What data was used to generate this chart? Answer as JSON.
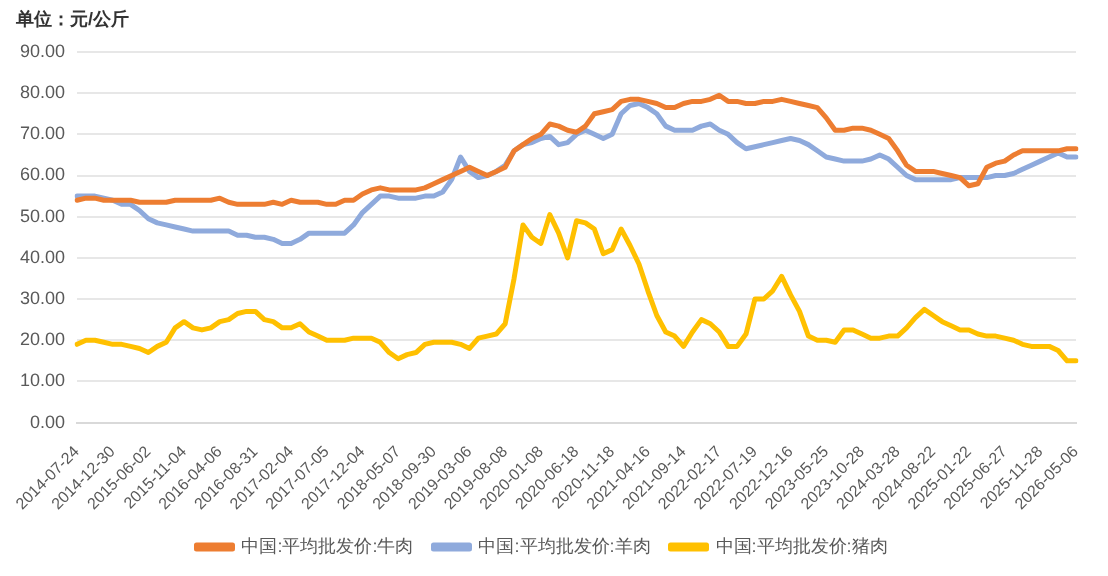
{
  "chart_data": {
    "type": "line",
    "ylabel": "单位：元/公斤",
    "categories": [
      "2014-07-24",
      null,
      null,
      null,
      "2014-12-30",
      null,
      null,
      null,
      "2015-06-02",
      null,
      null,
      null,
      "2015-11-04",
      null,
      null,
      null,
      "2016-04-06",
      null,
      null,
      null,
      "2016-08-31",
      null,
      null,
      null,
      "2017-02-04",
      null,
      null,
      null,
      "2017-07-05",
      null,
      null,
      null,
      "2017-12-04",
      null,
      null,
      null,
      "2018-05-07",
      null,
      null,
      null,
      "2018-09-30",
      null,
      null,
      null,
      "2019-03-06",
      null,
      null,
      null,
      "2019-08-08",
      null,
      null,
      null,
      "2020-01-08",
      null,
      null,
      null,
      "2020-06-18",
      null,
      null,
      null,
      "2020-11-18",
      null,
      null,
      null,
      "2021-04-16",
      null,
      null,
      null,
      "2021-09-14",
      null,
      null,
      null,
      "2022-02-17",
      null,
      null,
      null,
      "2022-07-19",
      null,
      null,
      null,
      "2022-12-16",
      null,
      null,
      null,
      "2023-05-25",
      null,
      null,
      null,
      "2023-10-28",
      null,
      null,
      null,
      "2024-03-28",
      null,
      null,
      null,
      "2024-08-22",
      null,
      null,
      null,
      "2025-01-22",
      null,
      null,
      null,
      "2025-06-27",
      null,
      null,
      null,
      "2025-11-28",
      null,
      null,
      null,
      "2026-05-06"
    ],
    "series": [
      {
        "name": "中国:平均批发价:牛肉",
        "color": "#ed7d31",
        "values": [
          54,
          54.5,
          54.5,
          54,
          54,
          54,
          54,
          53.5,
          53.5,
          53.5,
          53.5,
          54,
          54,
          54,
          54,
          54,
          54.5,
          53.5,
          53,
          53,
          53,
          53,
          53.5,
          53,
          54,
          53.5,
          53.5,
          53.5,
          53,
          53,
          54,
          54,
          55.5,
          56.5,
          57,
          56.5,
          56.5,
          56.5,
          56.5,
          57,
          58,
          59,
          60,
          61,
          62,
          61,
          60,
          61,
          62,
          66,
          67.5,
          69,
          70,
          72.5,
          72,
          71,
          70.5,
          72,
          75,
          75.5,
          76,
          78,
          78.5,
          78.5,
          78,
          77.5,
          76.5,
          76.5,
          77.5,
          78,
          78,
          78.5,
          79.5,
          78,
          78,
          77.5,
          77.5,
          78,
          78,
          78.5,
          78,
          77.5,
          77,
          76.5,
          74,
          71,
          71,
          71.5,
          71.5,
          71,
          70,
          69,
          66,
          62.5,
          61,
          61,
          61,
          60.5,
          60,
          59.5,
          57.5,
          58,
          62,
          63,
          63.5,
          65,
          66,
          66,
          66,
          66,
          66,
          66.5,
          66.5
        ]
      },
      {
        "name": "中国:平均批发价:羊肉",
        "color": "#8faadc",
        "values": [
          55,
          55,
          55,
          54.5,
          54,
          53,
          53,
          51.5,
          49.5,
          48.5,
          48,
          47.5,
          47,
          46.5,
          46.5,
          46.5,
          46.5,
          46.5,
          45.5,
          45.5,
          45,
          45,
          44.5,
          43.5,
          43.5,
          44.5,
          46,
          46,
          46,
          46,
          46,
          48,
          51,
          53,
          55,
          55,
          54.5,
          54.5,
          54.5,
          55,
          55,
          56,
          59,
          64.5,
          61,
          59.5,
          60,
          61,
          62.5,
          66,
          67.5,
          68,
          69,
          69.5,
          67.5,
          68,
          70,
          71,
          70,
          69,
          70,
          75,
          77,
          77.5,
          76.5,
          75,
          72,
          71,
          71,
          71,
          72,
          72.5,
          71,
          70,
          68,
          66.5,
          67,
          67.5,
          68,
          68.5,
          69,
          68.5,
          67.5,
          66,
          64.5,
          64,
          63.5,
          63.5,
          63.5,
          64,
          65,
          64,
          62,
          60,
          59,
          59,
          59,
          59,
          59,
          59.5,
          59.5,
          59.5,
          59.5,
          60,
          60,
          60.5,
          61.5,
          62.5,
          63.5,
          64.5,
          65.5,
          64.5,
          64.5
        ]
      },
      {
        "name": "中国:平均批发价:猪肉",
        "color": "#ffc000",
        "values": [
          19,
          20,
          20,
          19.5,
          19,
          19,
          18.5,
          18,
          17,
          18.5,
          19.5,
          23,
          24.5,
          23,
          22.5,
          23,
          24.5,
          25,
          26.5,
          27,
          27,
          25,
          24.5,
          23,
          23,
          24,
          22,
          21,
          20,
          20,
          20,
          20.5,
          20.5,
          20.5,
          19.5,
          17,
          15.5,
          16.5,
          17,
          19,
          19.5,
          19.5,
          19.5,
          19,
          18,
          20.5,
          21,
          21.5,
          24,
          35,
          48,
          45,
          43.5,
          50.5,
          46,
          40,
          49,
          48.5,
          47,
          41,
          42,
          47,
          43,
          38.5,
          32,
          26,
          22,
          21,
          18.5,
          22,
          25,
          24,
          22,
          18.5,
          18.5,
          21.5,
          30,
          30,
          32,
          35.5,
          31,
          27,
          21,
          20,
          20,
          19.5,
          22.5,
          22.5,
          21.5,
          20.5,
          20.5,
          21,
          21,
          23,
          25.5,
          27.5,
          26,
          24.5,
          23.5,
          22.5,
          22.5,
          21.5,
          21,
          21,
          20.5,
          20,
          19,
          18.5,
          18.5,
          18.5,
          17.5,
          15,
          15
        ]
      }
    ],
    "ylim": [
      0,
      90
    ],
    "yticks": [
      {
        "value": 0,
        "label": "0.00"
      },
      {
        "value": 10,
        "label": "10.00"
      },
      {
        "value": 20,
        "label": "20.00"
      },
      {
        "value": 30,
        "label": "30.00"
      },
      {
        "value": 40,
        "label": "40.00"
      },
      {
        "value": 50,
        "label": "50.00"
      },
      {
        "value": 60,
        "label": "60.00"
      },
      {
        "value": 70,
        "label": "70.00"
      },
      {
        "value": 80,
        "label": "80.00"
      },
      {
        "value": 90,
        "label": "90.00"
      }
    ],
    "grid": "y",
    "legend": "bottom",
    "marker": "none",
    "line_style": "solid"
  }
}
